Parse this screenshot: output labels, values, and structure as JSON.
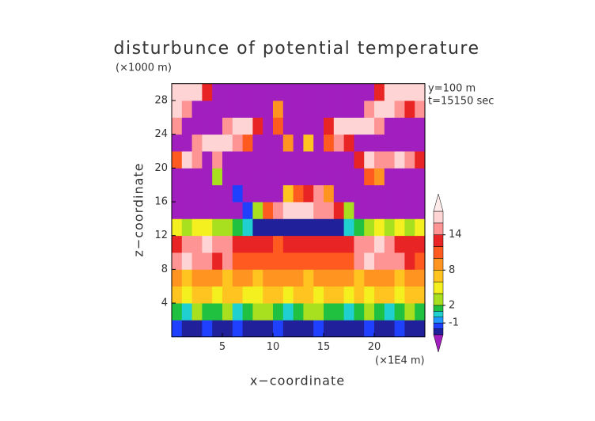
{
  "chart_data": {
    "type": "heatmap",
    "title": "disturbunce of potential temperature",
    "y_unit": "(×1000 m)",
    "x_unit": "(×1E4 m)",
    "annotations": [
      "y=100 m",
      "t=15150 sec"
    ],
    "x_label": "x−coordinate",
    "y_label": "z−coordinate",
    "xlim": [
      0,
      25
    ],
    "ylim": [
      0,
      30
    ],
    "xticks": [
      5,
      10,
      15,
      20
    ],
    "yticks": [
      4,
      8,
      12,
      16,
      20,
      24,
      28
    ],
    "xbins": [
      0,
      1,
      2,
      3,
      4,
      5,
      6,
      7,
      8,
      9,
      10,
      11,
      12,
      13,
      14,
      15,
      16,
      17,
      18,
      19,
      20,
      21,
      22,
      23,
      24,
      25
    ],
    "ybins": [
      0,
      2,
      4,
      6,
      8,
      10,
      12,
      14,
      16,
      18,
      20,
      22,
      24,
      26,
      28,
      30
    ],
    "values": [
      [
        -1.5,
        -2.5,
        -2.5,
        -1.5,
        -2.5,
        -2.5,
        -1.5,
        -2.5,
        -2.5,
        -2.5,
        -1.5,
        -2.5,
        -2.5,
        -2.5,
        -1.5,
        -2.5,
        -2.5,
        -2.5,
        -2.5,
        -1.5,
        -2.5,
        -2.5,
        -1.5,
        -2.5,
        -2.5
      ],
      [
        1.5,
        0.5,
        3,
        1.5,
        1.5,
        3,
        0.5,
        1.5,
        3,
        3,
        1.5,
        0.5,
        1.5,
        3,
        3,
        1.5,
        1.5,
        0.5,
        1.5,
        3,
        1.5,
        0.5,
        1.5,
        3,
        1.5
      ],
      [
        7,
        5,
        7,
        7,
        5,
        7,
        7,
        5,
        5,
        7,
        7,
        5,
        7,
        7,
        5,
        7,
        7,
        5,
        7,
        5,
        7,
        7,
        5,
        7,
        7
      ],
      [
        9,
        7,
        9,
        9,
        9,
        7,
        9,
        9,
        7,
        9,
        9,
        9,
        9,
        7,
        9,
        9,
        9,
        9,
        7,
        9,
        9,
        9,
        7,
        9,
        9
      ],
      [
        15,
        17,
        15,
        15,
        13,
        15,
        11,
        11,
        11,
        11,
        11,
        11,
        11,
        11,
        11,
        11,
        11,
        11,
        15,
        17,
        15,
        15,
        15,
        13,
        11
      ],
      [
        13,
        15,
        15,
        17,
        15,
        15,
        13,
        13,
        13,
        13,
        11,
        13,
        13,
        13,
        13,
        13,
        13,
        13,
        15,
        15,
        17,
        15,
        13,
        13,
        13
      ],
      [
        5,
        3,
        5,
        5,
        3,
        3,
        1.5,
        0.5,
        -2.5,
        -2.5,
        -2.5,
        -2.5,
        -2.5,
        -2.5,
        -2.5,
        -2.5,
        -2.5,
        0.5,
        1.5,
        3,
        5,
        3,
        5,
        3,
        5
      ],
      [
        -4,
        -4,
        -4,
        -4,
        -4,
        -4,
        -4,
        -1.5,
        3,
        11,
        15,
        17,
        17,
        17,
        15,
        15,
        13,
        3,
        -4,
        -4,
        -4,
        -4,
        -4,
        -4,
        -4
      ],
      [
        -4,
        -4,
        -4,
        -4,
        -4,
        -4,
        -1.5,
        -4,
        -4,
        -4,
        -4,
        7,
        11,
        13,
        15,
        9,
        -4,
        -4,
        -4,
        -4,
        -4,
        -4,
        -4,
        -4,
        -4
      ],
      [
        -4,
        -4,
        -4,
        -4,
        3,
        -4,
        -4,
        -4,
        -4,
        -4,
        -4,
        -4,
        -4,
        -4,
        -4,
        -4,
        -4,
        -4,
        -4,
        11,
        9,
        -4,
        -4,
        -4,
        -4
      ],
      [
        11,
        17,
        15,
        -4,
        15,
        -4,
        -4,
        -4,
        -4,
        -4,
        -4,
        -4,
        -4,
        -4,
        -4,
        -4,
        -4,
        -4,
        13,
        17,
        15,
        15,
        17,
        15,
        13
      ],
      [
        -4,
        -4,
        15,
        17,
        17,
        17,
        15,
        11,
        -4,
        -4,
        -4,
        9,
        -4,
        7,
        -4,
        11,
        15,
        13,
        -4,
        -4,
        -4,
        -4,
        -4,
        -4,
        -4
      ],
      [
        15,
        -4,
        -4,
        -4,
        -4,
        15,
        17,
        17,
        13,
        -4,
        11,
        -4,
        -4,
        -4,
        -4,
        13,
        17,
        17,
        17,
        17,
        15,
        -4,
        -4,
        -4,
        -4
      ],
      [
        17,
        15,
        -4,
        -4,
        -4,
        -4,
        -4,
        -4,
        -4,
        -4,
        9,
        -4,
        -4,
        -4,
        -4,
        -4,
        -4,
        -4,
        -4,
        15,
        17,
        17,
        15,
        13,
        15
      ],
      [
        17,
        17,
        17,
        13,
        -4,
        -4,
        -4,
        -4,
        -4,
        -4,
        -4,
        -4,
        -4,
        -4,
        -4,
        -4,
        -4,
        -4,
        -4,
        -4,
        13,
        17,
        17,
        17,
        17
      ]
    ],
    "levels": [
      -3,
      -2,
      -1,
      0,
      1,
      2,
      4,
      6,
      8,
      10,
      12,
      14,
      16,
      18
    ],
    "colors": [
      "#20209a",
      "#2040ff",
      "#2098ff",
      "#20d0d0",
      "#20c040",
      "#a8e020",
      "#f4f020",
      "#ffc420",
      "#ff9420",
      "#ff5a20",
      "#e82424",
      "#ff9494",
      "#ffd4d4"
    ],
    "under_color": "#a21fbf",
    "over_color": "#ffeaea",
    "colorbar_ticks": [
      -1,
      2,
      8,
      14
    ]
  }
}
